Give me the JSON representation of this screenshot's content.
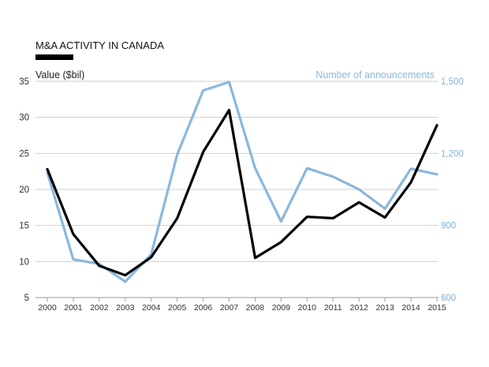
{
  "chart_data": {
    "type": "line",
    "title": "M&A ACTIVITY IN CANADA",
    "x": [
      "2000",
      "2001",
      "2002",
      "2003",
      "2004",
      "2005",
      "2006",
      "2007",
      "2008",
      "2009",
      "2010",
      "2011",
      "2012",
      "2013",
      "2014",
      "2015"
    ],
    "series": [
      {
        "name": "Value ($bil)",
        "axis": "left",
        "color": "#000000",
        "values": [
          22.8,
          13.8,
          9.4,
          8.1,
          10.6,
          16.0,
          25.2,
          31.0,
          10.5,
          12.7,
          16.2,
          16.0,
          18.2,
          16.1,
          21.0,
          28.9
        ]
      },
      {
        "name": "Number of announcements",
        "axis": "right",
        "color": "#8ab7de",
        "values": [
          1120,
          759,
          740,
          666,
          780,
          1195,
          1462,
          1497,
          1138,
          917,
          1138,
          1103,
          1050,
          970,
          1136,
          1113
        ]
      }
    ],
    "yleft": {
      "range": [
        5,
        35
      ],
      "ticks": [
        "35",
        "30",
        "25",
        "20",
        "15",
        "10",
        "5"
      ],
      "tick_values": [
        35,
        30,
        25,
        20,
        15,
        10,
        5
      ]
    },
    "yright": {
      "range": [
        600,
        1500
      ],
      "ticks": [
        "1,500",
        "1,200",
        "900",
        "600"
      ],
      "tick_values": [
        1500,
        1200,
        900,
        600
      ]
    },
    "grid": true
  }
}
